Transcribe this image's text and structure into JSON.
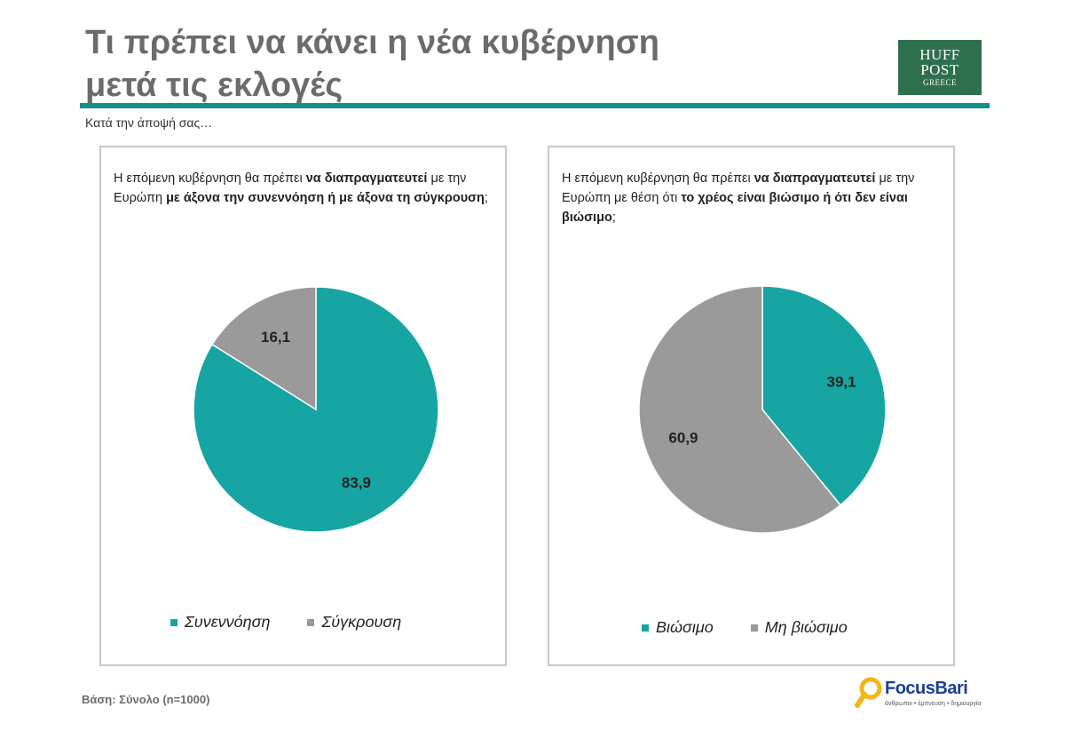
{
  "header": {
    "title_line1": "Τι πρέπει να κάνει η νέα κυβέρνηση",
    "title_line2": "μετά τις εκλογές",
    "subtitle": "Κατά την άποψή σας…"
  },
  "logo": {
    "line1": "HUFF",
    "line2": "POST",
    "line3": "GREECE"
  },
  "colors": {
    "teal": "#16a5a2",
    "gray": "#9a9a9a",
    "rule": "#138f8c",
    "logo_bg": "#2e6f4e"
  },
  "left_question": {
    "p1": "Η επόμενη κυβέρνηση θα πρέπει ",
    "b1": "να διαπραγματευτεί",
    "p2": " με την Ευρώπη ",
    "b2": "με άξονα την συνεννόηση ή με άξονα τη σύγκρουση",
    "p3": ";"
  },
  "right_question": {
    "p1": "Η επόμενη κυβέρνηση θα πρέπει ",
    "b1": "να διαπραγματευτεί",
    "p2": " με την Ευρώπη με θέση ότι ",
    "b2": "το χρέος είναι βιώσιμο ή ότι δεν είναι βιώσιμο",
    "p3": ";"
  },
  "chart_data": [
    {
      "type": "pie",
      "slices": [
        {
          "label": "Συνεννόηση",
          "value": 83.9,
          "display": "83,9",
          "color": "#16a5a2"
        },
        {
          "label": "Σύγκρουση",
          "value": 16.1,
          "display": "16,1",
          "color": "#9a9a9a"
        }
      ],
      "legend_position": "bottom"
    },
    {
      "type": "pie",
      "slices": [
        {
          "label": "Βιώσιμο",
          "value": 39.1,
          "display": "39,1",
          "color": "#16a5a2"
        },
        {
          "label": "Μη βιώσιμο",
          "value": 60.9,
          "display": "60,9",
          "color": "#9a9a9a"
        }
      ],
      "legend_position": "bottom"
    }
  ],
  "footer": {
    "base": "Βάση: Σύνολο (n=1000)",
    "focus_name": "FocusBari",
    "focus_tagline": "άνθρωποι • έμπνευση • δημιουργία"
  }
}
